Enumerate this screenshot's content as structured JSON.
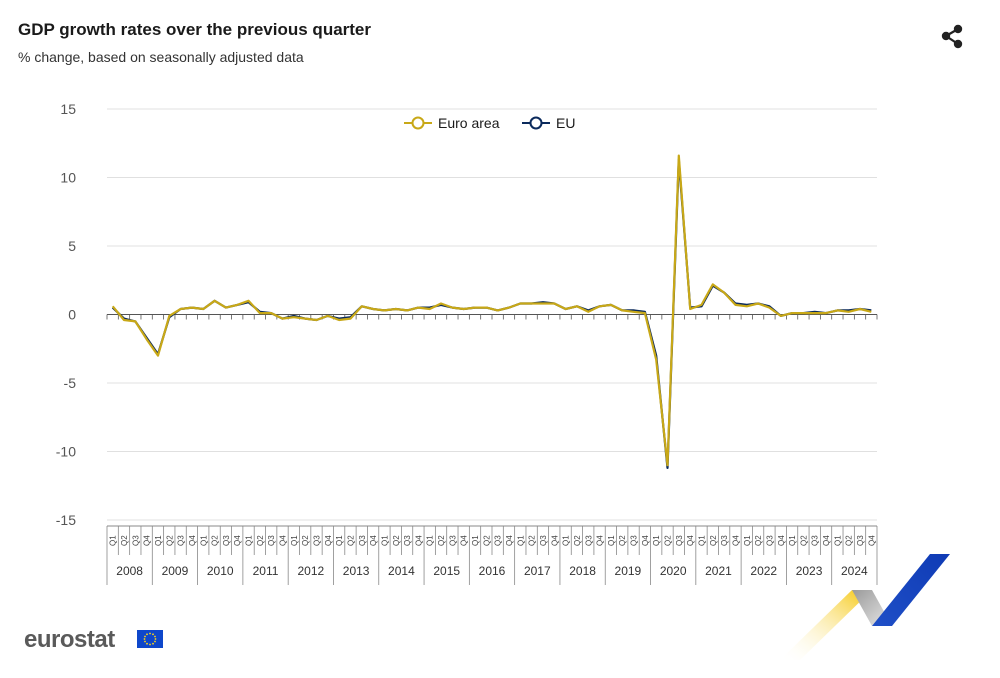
{
  "header": {
    "title": "GDP growth rates over the previous quarter",
    "subtitle": "% change, based on seasonally adjusted data"
  },
  "icons": {
    "share": "share-icon",
    "logo_text": "eurostat"
  },
  "colors": {
    "euro_area": "#c8a817",
    "eu": "#0b2a5c",
    "grid": "#e0e0e0",
    "axis": "#555555"
  },
  "chart_data": {
    "type": "line",
    "title": "GDP growth rates over the previous quarter",
    "subtitle": "% change, based on seasonally adjusted data",
    "xlabel": "",
    "ylabel": "",
    "ylim": [
      -15,
      15
    ],
    "yticks": [
      15,
      10,
      5,
      0,
      -5,
      -10,
      -15
    ],
    "grid": true,
    "legend_position": "top-center",
    "years": [
      "2008",
      "2009",
      "2010",
      "2011",
      "2012",
      "2013",
      "2014",
      "2015",
      "2016",
      "2017",
      "2018",
      "2019",
      "2020",
      "2021",
      "2022",
      "2023",
      "2024"
    ],
    "quarters": [
      "Q1",
      "Q2",
      "Q3",
      "Q4"
    ],
    "series": [
      {
        "name": "Euro area",
        "color": "#c8a817",
        "values": [
          0.6,
          -0.4,
          -0.5,
          -1.8,
          -3.0,
          -0.1,
          0.4,
          0.5,
          0.4,
          1.0,
          0.5,
          0.7,
          1.0,
          0.1,
          0.1,
          -0.3,
          -0.2,
          -0.3,
          -0.4,
          -0.1,
          -0.4,
          -0.3,
          0.6,
          0.4,
          0.3,
          0.4,
          0.3,
          0.5,
          0.4,
          0.8,
          0.5,
          0.4,
          0.5,
          0.5,
          0.3,
          0.5,
          0.8,
          0.8,
          0.8,
          0.8,
          0.4,
          0.6,
          0.2,
          0.6,
          0.7,
          0.3,
          0.2,
          0.1,
          -3.3,
          -11.0,
          11.6,
          0.4,
          0.7,
          2.2,
          1.6,
          0.7,
          0.6,
          0.8,
          0.5,
          -0.1,
          0.1,
          0.1,
          0.1,
          0.1,
          0.3,
          0.2,
          0.4,
          0.2
        ]
      },
      {
        "name": "EU",
        "color": "#0b2a5c",
        "values": [
          0.5,
          -0.3,
          -0.5,
          -1.7,
          -2.9,
          -0.2,
          0.4,
          0.5,
          0.4,
          1.0,
          0.5,
          0.7,
          0.9,
          0.2,
          0.1,
          -0.3,
          -0.1,
          -0.3,
          -0.4,
          -0.1,
          -0.3,
          -0.2,
          0.6,
          0.4,
          0.3,
          0.4,
          0.3,
          0.5,
          0.5,
          0.7,
          0.5,
          0.4,
          0.5,
          0.5,
          0.3,
          0.5,
          0.8,
          0.8,
          0.9,
          0.8,
          0.4,
          0.6,
          0.3,
          0.6,
          0.7,
          0.3,
          0.3,
          0.2,
          -3.0,
          -11.2,
          11.3,
          0.5,
          0.6,
          2.1,
          1.6,
          0.8,
          0.7,
          0.8,
          0.6,
          -0.1,
          0.1,
          0.1,
          0.2,
          0.1,
          0.3,
          0.3,
          0.4,
          0.3
        ]
      }
    ]
  }
}
